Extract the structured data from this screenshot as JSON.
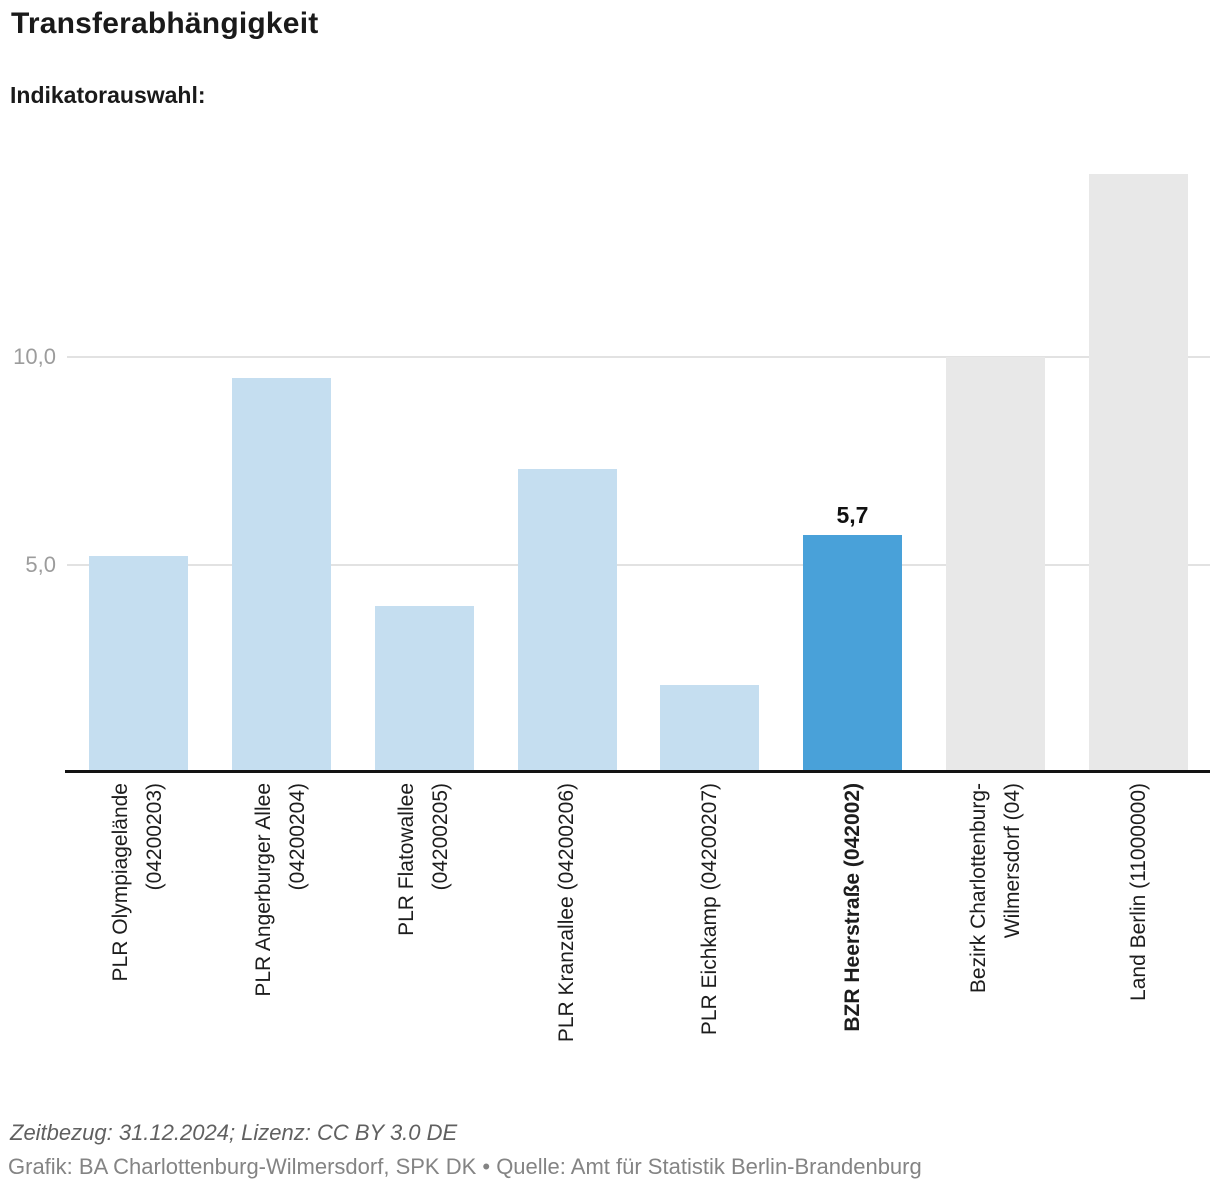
{
  "header": {
    "title": "Transferabhängigkeit",
    "indicator_label": "Indikatorauswahl:"
  },
  "colors": {
    "plr": "#c5def0",
    "highlight": "#49a1d9",
    "context": "#e8e8e8",
    "gridline": "#e2e2e2",
    "axis": "#131313"
  },
  "chart_data": {
    "type": "bar",
    "title": "Transferabhängigkeit",
    "xlabel": "",
    "ylabel": "",
    "ylim": [
      0,
      15
    ],
    "grid": "horizontal",
    "legend": "none",
    "highlighted_category": "BZR Heerstraße (042002)",
    "yticks": [
      {
        "value": 5,
        "label": "5,0"
      },
      {
        "value": 10,
        "label": "10,0"
      }
    ],
    "categories": [
      "PLR Olympiagelände (04200203)",
      "PLR Angerburger Allee (04200204)",
      "PLR Flatowallee (04200205)",
      "PLR Kranzallee (04200206)",
      "PLR Eichkamp (04200207)",
      "BZR Heerstraße (042002)",
      "Bezirk Charlottenburg-Wilmersdorf (04)",
      "Land Berlin (11000000)"
    ],
    "bars": [
      {
        "id": "plr-olympiagelaende",
        "label_lines": [
          "PLR Olympiagelände",
          "(04200203)"
        ],
        "value": 5.2,
        "role": "plr",
        "emphasis": false,
        "value_label": ""
      },
      {
        "id": "plr-angerburger-allee",
        "label_lines": [
          "PLR Angerburger Allee",
          "(04200204)"
        ],
        "value": 9.5,
        "role": "plr",
        "emphasis": false,
        "value_label": ""
      },
      {
        "id": "plr-flatowallee",
        "label_lines": [
          "PLR Flatowallee",
          "(04200205)"
        ],
        "value": 4.0,
        "role": "plr",
        "emphasis": false,
        "value_label": ""
      },
      {
        "id": "plr-kranzallee",
        "label_lines": [
          "PLR Kranzallee (04200206)"
        ],
        "value": 7.3,
        "role": "plr",
        "emphasis": false,
        "value_label": ""
      },
      {
        "id": "plr-eichkamp",
        "label_lines": [
          "PLR Eichkamp (04200207)"
        ],
        "value": 2.1,
        "role": "plr",
        "emphasis": false,
        "value_label": ""
      },
      {
        "id": "bzr-heerstrasse",
        "label_lines": [
          "BZR Heerstraße (042002)"
        ],
        "value": 5.7,
        "role": "highlight",
        "emphasis": true,
        "value_label": "5,7"
      },
      {
        "id": "bezirk-charlottenburg-wilmersdorf",
        "label_lines": [
          "Bezirk Charlottenburg-",
          "Wilmersdorf (04)"
        ],
        "value": 10.0,
        "role": "context",
        "emphasis": false,
        "value_label": ""
      },
      {
        "id": "land-berlin",
        "label_lines": [
          "Land Berlin (11000000)"
        ],
        "value": 14.4,
        "role": "context",
        "emphasis": false,
        "value_label": ""
      }
    ]
  },
  "footer": {
    "line1": "Zeitbezug: 31.12.2024; Lizenz: CC BY 3.0 DE",
    "line2": "Grafik: BA Charlottenburg-Wilmersdorf, SPK DK • Quelle: Amt für Statistik Berlin-Brandenburg"
  }
}
